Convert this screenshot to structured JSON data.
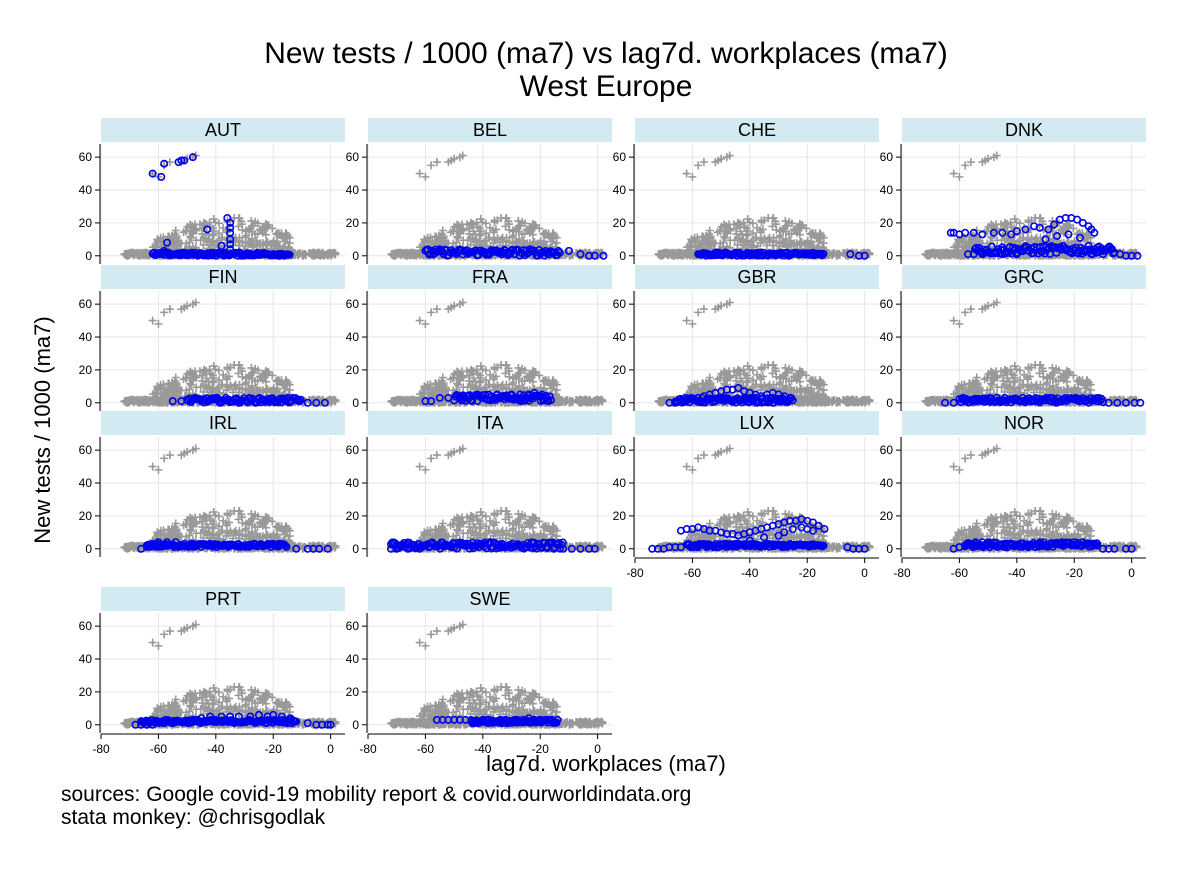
{
  "chart_data": {
    "type": "scatter",
    "title": "New tests / 1000 (ma7) vs lag7d. workplaces (ma7)",
    "subtitle": "West Europe",
    "xlabel": "lag7d. workplaces (ma7)",
    "ylabel": "New tests / 1000 (ma7)",
    "xlim": [
      -80,
      5
    ],
    "ylim": [
      -5,
      68
    ],
    "x_ticks": [
      -80,
      -60,
      -40,
      -20,
      0
    ],
    "y_ticks": [
      0,
      20,
      40,
      60
    ],
    "grid": true,
    "layout": "facets 4 columns",
    "note_lines": [
      "sources: Google covid-19 mobility report & covid.ourworldindata.org",
      "stata monkey: @chrisgodlak"
    ],
    "background_style": {
      "marker": "plus",
      "color": "#999999"
    },
    "highlight_style": {
      "marker": "hollow-circle",
      "color": "#0000ee"
    },
    "strip_color": "#d4eaf2",
    "background_points": [
      [
        -62,
        50
      ],
      [
        -60,
        48
      ],
      [
        -58,
        55
      ],
      [
        -56,
        57
      ],
      [
        -52,
        57
      ],
      [
        -51,
        58
      ],
      [
        -50,
        59
      ],
      [
        -48,
        60
      ],
      [
        -47,
        61
      ]
    ],
    "facets": [
      {
        "label": "AUT",
        "points": [
          [
            -62,
            50
          ],
          [
            -59,
            48
          ],
          [
            -58,
            56
          ],
          [
            -53,
            57
          ],
          [
            -52,
            58
          ],
          [
            -51,
            58
          ],
          [
            -48,
            60
          ],
          [
            -43,
            16
          ],
          [
            -38,
            6
          ],
          [
            -36,
            23
          ],
          [
            -35,
            20
          ],
          [
            -35,
            17
          ],
          [
            -35,
            14
          ],
          [
            -35,
            10
          ],
          [
            -35,
            7
          ],
          [
            -35,
            4
          ],
          [
            -57,
            8
          ],
          [
            -58,
            3
          ]
        ],
        "band": {
          "x0": -62,
          "x1": -14,
          "ylo": 0,
          "yhi": 2
        }
      },
      {
        "label": "BEL",
        "points": [
          [
            -10,
            3
          ],
          [
            -6,
            1
          ],
          [
            -3,
            0
          ],
          [
            -1,
            0
          ],
          [
            2,
            0
          ]
        ],
        "band": {
          "x0": -60,
          "x1": -13,
          "ylo": 0,
          "yhi": 4
        }
      },
      {
        "label": "CHE",
        "points": [
          [
            -5,
            1
          ],
          [
            -2,
            0
          ],
          [
            0,
            0
          ]
        ],
        "band": {
          "x0": -58,
          "x1": -14,
          "ylo": 0,
          "yhi": 2
        }
      },
      {
        "label": "DNK",
        "points": [
          [
            -63,
            14
          ],
          [
            -62,
            14
          ],
          [
            -60,
            13
          ],
          [
            -58,
            14
          ],
          [
            -55,
            14
          ],
          [
            -52,
            13
          ],
          [
            -48,
            14
          ],
          [
            -45,
            14
          ],
          [
            -42,
            13
          ],
          [
            -40,
            15
          ],
          [
            -37,
            16
          ],
          [
            -34,
            18
          ],
          [
            -32,
            17
          ],
          [
            -29,
            16
          ],
          [
            -27,
            19
          ],
          [
            -25,
            22
          ],
          [
            -23,
            23
          ],
          [
            -21,
            23
          ],
          [
            -19,
            22
          ],
          [
            -17,
            20
          ],
          [
            -15,
            18
          ],
          [
            -14,
            16
          ],
          [
            -13,
            14
          ],
          [
            -30,
            10
          ],
          [
            -26,
            12
          ],
          [
            -22,
            13
          ],
          [
            -18,
            11
          ],
          [
            -12,
            5
          ],
          [
            -10,
            3
          ],
          [
            -6,
            2
          ],
          [
            -4,
            1
          ],
          [
            -2,
            0
          ],
          [
            0,
            0
          ],
          [
            2,
            0
          ],
          [
            -57,
            1
          ],
          [
            -52,
            1
          ],
          [
            -45,
            1
          ],
          [
            -40,
            1
          ]
        ],
        "band": {
          "x0": -55,
          "x1": -6,
          "ylo": 1,
          "yhi": 6
        }
      },
      {
        "label": "FIN",
        "points": [
          [
            -55,
            1
          ],
          [
            -52,
            1
          ],
          [
            -8,
            0
          ],
          [
            -5,
            0
          ],
          [
            -2,
            0
          ]
        ],
        "band": {
          "x0": -50,
          "x1": -10,
          "ylo": 0,
          "yhi": 3
        }
      },
      {
        "label": "FRA",
        "points": [
          [
            -60,
            1
          ],
          [
            -58,
            1
          ],
          [
            -55,
            3
          ],
          [
            -52,
            3
          ],
          [
            -48,
            4
          ],
          [
            -45,
            4
          ],
          [
            -42,
            5
          ],
          [
            -38,
            5
          ],
          [
            -35,
            5
          ],
          [
            -30,
            5
          ],
          [
            -27,
            5
          ],
          [
            -24,
            5
          ],
          [
            -22,
            6
          ],
          [
            -20,
            4
          ],
          [
            -18,
            3
          ]
        ],
        "band": {
          "x0": -50,
          "x1": -16,
          "ylo": 1,
          "yhi": 5
        }
      },
      {
        "label": "GBR",
        "points": [
          [
            -68,
            0
          ],
          [
            -66,
            0
          ],
          [
            -63,
            1
          ],
          [
            -60,
            2
          ],
          [
            -58,
            3
          ],
          [
            -56,
            4
          ],
          [
            -54,
            5
          ],
          [
            -52,
            6
          ],
          [
            -50,
            7
          ],
          [
            -48,
            8
          ],
          [
            -46,
            8
          ],
          [
            -44,
            9
          ],
          [
            -42,
            7
          ],
          [
            -40,
            6
          ],
          [
            -38,
            5
          ],
          [
            -36,
            4
          ],
          [
            -34,
            5
          ],
          [
            -32,
            6
          ],
          [
            -30,
            5
          ],
          [
            -28,
            4
          ],
          [
            -26,
            3
          ]
        ],
        "band": {
          "x0": -66,
          "x1": -25,
          "ylo": 0,
          "yhi": 3
        }
      },
      {
        "label": "GRC",
        "points": [
          [
            -65,
            0
          ],
          [
            -62,
            0
          ],
          [
            -58,
            1
          ],
          [
            -54,
            1
          ],
          [
            -8,
            0
          ],
          [
            -5,
            0
          ],
          [
            -2,
            0
          ],
          [
            1,
            0
          ],
          [
            3,
            0
          ]
        ],
        "band": {
          "x0": -60,
          "x1": -10,
          "ylo": 0,
          "yhi": 3
        }
      },
      {
        "label": "IRL",
        "points": [
          [
            -66,
            0
          ],
          [
            -64,
            2
          ],
          [
            -62,
            3
          ],
          [
            -60,
            4
          ],
          [
            -57,
            4
          ],
          [
            -54,
            4
          ],
          [
            -51,
            3
          ],
          [
            -48,
            3
          ],
          [
            -45,
            3
          ],
          [
            -42,
            3
          ],
          [
            -38,
            2
          ],
          [
            -35,
            2
          ],
          [
            -30,
            2
          ],
          [
            -25,
            2
          ],
          [
            -20,
            3
          ],
          [
            -18,
            3
          ],
          [
            -12,
            0
          ],
          [
            -8,
            0
          ],
          [
            -6,
            0
          ],
          [
            -4,
            0
          ],
          [
            -1,
            0
          ]
        ],
        "band": {
          "x0": -64,
          "x1": -15,
          "ylo": 1,
          "yhi": 3
        }
      },
      {
        "label": "ITA",
        "points": [
          [
            -72,
            0
          ],
          [
            -70,
            0
          ],
          [
            -66,
            0
          ],
          [
            -62,
            0
          ],
          [
            -12,
            0
          ],
          [
            -9,
            0
          ],
          [
            -6,
            0
          ],
          [
            -3,
            0
          ],
          [
            -1,
            0
          ]
        ],
        "band": {
          "x0": -72,
          "x1": -12,
          "ylo": 0,
          "yhi": 4
        }
      },
      {
        "label": "LUX",
        "points": [
          [
            -74,
            0
          ],
          [
            -72,
            0
          ],
          [
            -70,
            0
          ],
          [
            -68,
            1
          ],
          [
            -66,
            1
          ],
          [
            -64,
            11
          ],
          [
            -62,
            12
          ],
          [
            -60,
            12
          ],
          [
            -58,
            13
          ],
          [
            -56,
            12
          ],
          [
            -54,
            11
          ],
          [
            -52,
            11
          ],
          [
            -50,
            10
          ],
          [
            -48,
            9
          ],
          [
            -46,
            9
          ],
          [
            -44,
            8
          ],
          [
            -42,
            9
          ],
          [
            -40,
            10
          ],
          [
            -38,
            11
          ],
          [
            -36,
            12
          ],
          [
            -34,
            13
          ],
          [
            -32,
            14
          ],
          [
            -30,
            15
          ],
          [
            -28,
            16
          ],
          [
            -26,
            17
          ],
          [
            -24,
            17
          ],
          [
            -22,
            18
          ],
          [
            -20,
            17
          ],
          [
            -18,
            16
          ],
          [
            -16,
            14
          ],
          [
            -14,
            12
          ],
          [
            -30,
            8
          ],
          [
            -28,
            10
          ],
          [
            -25,
            12
          ],
          [
            -22,
            13
          ],
          [
            -20,
            12
          ],
          [
            -18,
            11
          ],
          [
            -35,
            7
          ],
          [
            -40,
            5
          ],
          [
            -45,
            3
          ],
          [
            -50,
            2
          ],
          [
            -55,
            1
          ],
          [
            -60,
            1
          ],
          [
            -58,
            1
          ],
          [
            -64,
            1
          ],
          [
            -6,
            1
          ],
          [
            -4,
            0
          ],
          [
            -2,
            0
          ],
          [
            0,
            0
          ]
        ],
        "band": {
          "x0": -62,
          "x1": -14,
          "ylo": 1,
          "yhi": 3
        }
      },
      {
        "label": "NOR",
        "points": [
          [
            -62,
            0
          ],
          [
            -60,
            1
          ],
          [
            -58,
            2
          ],
          [
            -56,
            2
          ],
          [
            -54,
            3
          ],
          [
            -52,
            4
          ],
          [
            -50,
            3
          ],
          [
            -48,
            2
          ],
          [
            -46,
            2
          ],
          [
            -44,
            3
          ],
          [
            -42,
            3
          ],
          [
            -40,
            2
          ],
          [
            -36,
            2
          ],
          [
            -32,
            3
          ],
          [
            -28,
            3
          ],
          [
            -24,
            3
          ],
          [
            -20,
            4
          ],
          [
            -16,
            3
          ],
          [
            -12,
            2
          ],
          [
            -10,
            0
          ],
          [
            -8,
            0
          ],
          [
            -6,
            0
          ],
          [
            -2,
            0
          ],
          [
            0,
            0
          ]
        ],
        "band": {
          "x0": -58,
          "x1": -12,
          "ylo": 1,
          "yhi": 4
        }
      },
      {
        "label": "PRT",
        "points": [
          [
            -68,
            0
          ],
          [
            -66,
            0
          ],
          [
            -64,
            0
          ],
          [
            -62,
            0
          ],
          [
            -58,
            1
          ],
          [
            -55,
            1
          ],
          [
            -52,
            2
          ],
          [
            -48,
            3
          ],
          [
            -45,
            4
          ],
          [
            -42,
            5
          ],
          [
            -38,
            5
          ],
          [
            -35,
            5
          ],
          [
            -32,
            5
          ],
          [
            -28,
            5
          ],
          [
            -25,
            6
          ],
          [
            -22,
            5
          ],
          [
            -20,
            6
          ],
          [
            -17,
            5
          ],
          [
            -14,
            4
          ],
          [
            -12,
            2
          ],
          [
            -8,
            1
          ],
          [
            -5,
            0
          ],
          [
            -3,
            0
          ],
          [
            -1,
            0
          ],
          [
            0,
            0
          ]
        ],
        "band": {
          "x0": -66,
          "x1": -12,
          "ylo": 1,
          "yhi": 3
        }
      },
      {
        "label": "SWE",
        "points": [
          [
            -56,
            3
          ],
          [
            -54,
            3
          ],
          [
            -52,
            3
          ],
          [
            -50,
            3
          ],
          [
            -48,
            3
          ],
          [
            -46,
            3
          ],
          [
            -44,
            2
          ],
          [
            -42,
            2
          ],
          [
            -40,
            3
          ],
          [
            -38,
            3
          ],
          [
            -36,
            2
          ],
          [
            -34,
            3
          ],
          [
            -32,
            3
          ],
          [
            -30,
            2
          ],
          [
            -28,
            3
          ],
          [
            -26,
            3
          ],
          [
            -24,
            4
          ],
          [
            -22,
            3
          ],
          [
            -20,
            3
          ],
          [
            -18,
            3
          ],
          [
            -16,
            3
          ],
          [
            -14,
            3
          ]
        ],
        "band": {
          "x0": -44,
          "x1": -14,
          "ylo": 1,
          "yhi": 3
        }
      }
    ]
  }
}
